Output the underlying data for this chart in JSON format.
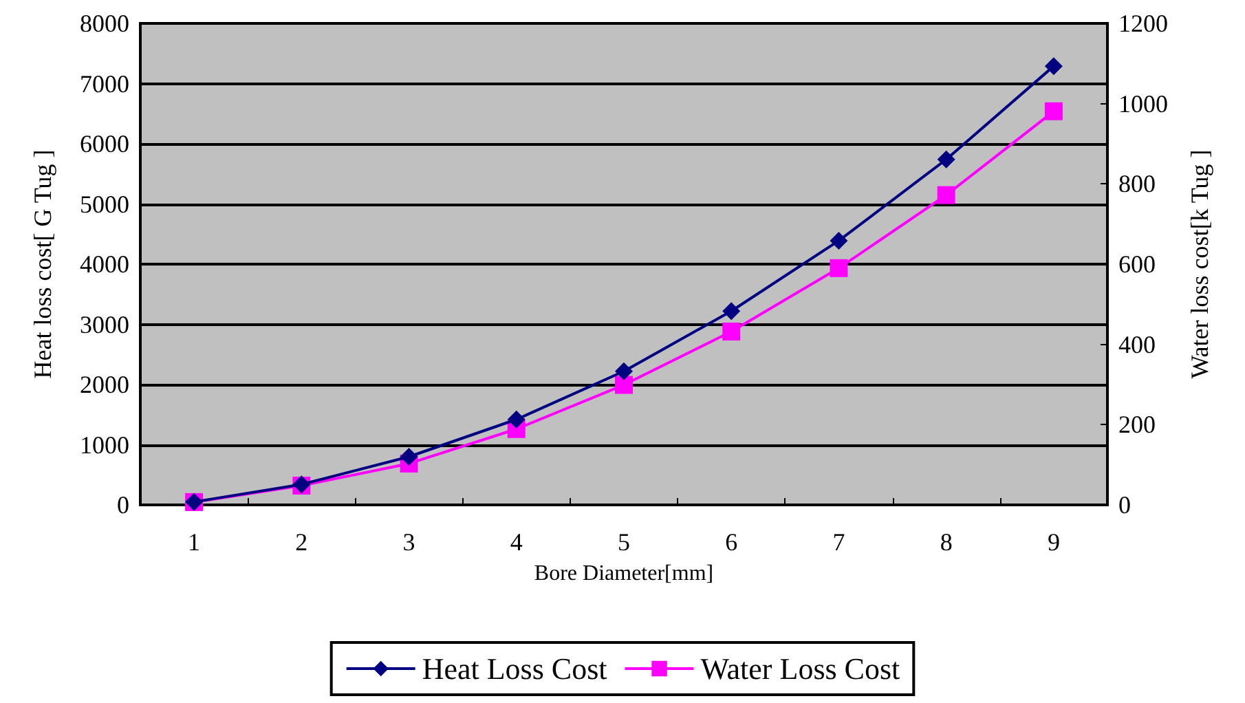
{
  "chart_data": {
    "type": "line",
    "xlabel": "Bore Diameter[mm]",
    "ylabel": "Heat loss cost[ G Tug ]",
    "y2label": "Water loss cost[k Tug ]",
    "categories": [
      "1",
      "2",
      "3",
      "4",
      "5",
      "6",
      "7",
      "8",
      "9"
    ],
    "series": [
      {
        "name": "Heat Loss Cost",
        "color": "#000080",
        "marker": "diamond",
        "values": [
          50,
          340,
          800,
          1420,
          2220,
          3220,
          4390,
          5740,
          7290
        ]
      },
      {
        "name": "Water Loss Cost",
        "color": "#ff00ff",
        "marker": "square",
        "axis": "y2",
        "values": [
          7,
          48,
          103,
          189,
          299,
          432,
          590,
          772,
          981
        ]
      }
    ],
    "ylim": [
      0,
      8000
    ],
    "yticks": [
      0,
      1000,
      2000,
      3000,
      4000,
      5000,
      6000,
      7000,
      8000
    ],
    "y2lim": [
      0,
      1200
    ],
    "y2ticks": [
      0,
      200,
      400,
      600,
      800,
      1000,
      1200
    ],
    "grid": "y",
    "legend": "bottom",
    "line_style": "solid"
  }
}
